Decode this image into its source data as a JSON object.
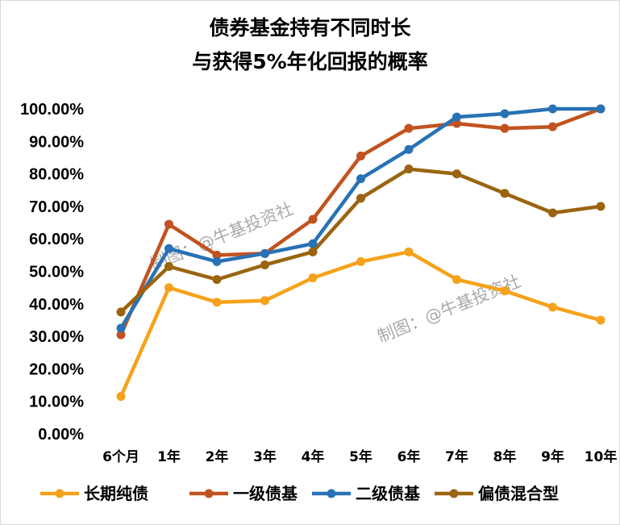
{
  "chart_data": {
    "type": "line",
    "title_line1": "债券基金持有不同时长",
    "title_line2": "与获得5%年化回报的概率",
    "xlabel": "",
    "ylabel": "",
    "categories": [
      "6个月",
      "1年",
      "2年",
      "3年",
      "4年",
      "5年",
      "6年",
      "7年",
      "8年",
      "9年",
      "10年"
    ],
    "ylim": [
      0,
      100
    ],
    "ytick_labels": [
      "0.00%",
      "10.00%",
      "20.00%",
      "30.00%",
      "40.00%",
      "50.00%",
      "60.00%",
      "70.00%",
      "80.00%",
      "90.00%",
      "100.00%"
    ],
    "grid": false,
    "legend_position": "bottom",
    "series": [
      {
        "name": "长期纯债",
        "color": "#f5a21b",
        "values": [
          11.5,
          45.0,
          40.5,
          41.0,
          48.0,
          53.0,
          56.0,
          47.5,
          44.0,
          39.0,
          35.0
        ]
      },
      {
        "name": "一级债基",
        "color": "#c2521f",
        "values": [
          30.5,
          64.5,
          55.0,
          55.5,
          66.0,
          85.5,
          94.0,
          95.5,
          94.0,
          94.5,
          100.0
        ]
      },
      {
        "name": "二级债基",
        "color": "#2872b5",
        "values": [
          32.5,
          57.0,
          53.0,
          55.5,
          58.5,
          78.5,
          87.5,
          97.5,
          98.5,
          100.0,
          100.0
        ]
      },
      {
        "name": "偏债混合型",
        "color": "#9a6410",
        "values": [
          37.5,
          51.5,
          47.5,
          52.0,
          56.0,
          72.5,
          81.5,
          80.0,
          74.0,
          68.0,
          70.0
        ]
      }
    ],
    "watermark": "制图：@牛基投资社"
  }
}
